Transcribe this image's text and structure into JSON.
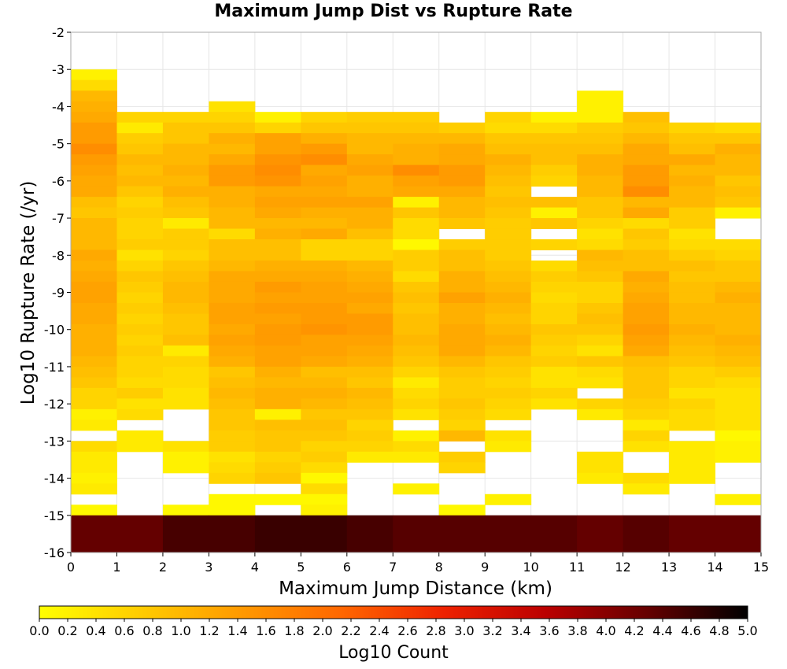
{
  "chart_data": {
    "type": "heatmap",
    "title": "Maximum Jump Dist vs Rupture Rate",
    "xlabel": "Maximum Jump Distance (km)",
    "ylabel": "Log10 Rupture Rate (/yr)",
    "xlim": [
      0,
      15
    ],
    "ylim": [
      -16,
      -2
    ],
    "x_ticks": [
      "0",
      "1",
      "2",
      "3",
      "4",
      "5",
      "6",
      "7",
      "8",
      "9",
      "10",
      "11",
      "12",
      "13",
      "14",
      "15"
    ],
    "y_ticks": [
      "-2",
      "-3",
      "-4",
      "-5",
      "-6",
      "-7",
      "-8",
      "-9",
      "-10",
      "-11",
      "-12",
      "-13",
      "-14",
      "-15",
      "-16"
    ],
    "x_bin_width": 1,
    "y_bin_width": 0.2857,
    "y_bin_start": -3.0,
    "colorbar": {
      "label": "Log10 Count",
      "min": 0.0,
      "max": 5.0,
      "ticks": [
        "0.0",
        "0.2",
        "0.4",
        "0.6",
        "0.8",
        "1.0",
        "1.2",
        "1.4",
        "1.6",
        "1.8",
        "2.0",
        "2.2",
        "2.4",
        "2.6",
        "2.8",
        "3.0",
        "3.2",
        "3.4",
        "3.6",
        "3.8",
        "4.0",
        "4.2",
        "4.4",
        "4.6",
        "4.8",
        "5.0"
      ],
      "colors": [
        "#ffff00",
        "#ffcc00",
        "#ff9900",
        "#ff6600",
        "#ee2200",
        "#bb0000",
        "#660000",
        "#000000"
      ]
    },
    "values": [
      [
        0.2,
        null,
        null,
        null,
        null,
        null,
        null,
        null,
        null,
        null,
        null,
        null,
        null,
        null,
        null
      ],
      [
        0.5,
        null,
        null,
        null,
        null,
        null,
        null,
        null,
        null,
        null,
        null,
        null,
        null,
        null,
        null
      ],
      [
        1.0,
        null,
        null,
        null,
        null,
        null,
        null,
        null,
        null,
        null,
        null,
        0.2,
        null,
        null,
        null
      ],
      [
        1.1,
        null,
        null,
        0.4,
        null,
        null,
        null,
        null,
        null,
        null,
        null,
        0.2,
        null,
        null,
        null
      ],
      [
        1.2,
        0.6,
        0.6,
        0.6,
        0.2,
        0.6,
        0.7,
        0.7,
        null,
        0.6,
        0.2,
        0.2,
        0.9,
        null,
        null
      ],
      [
        1.4,
        0.3,
        0.8,
        0.8,
        0.6,
        0.8,
        0.8,
        0.8,
        0.7,
        0.5,
        0.5,
        0.7,
        0.8,
        0.6,
        0.5
      ],
      [
        1.4,
        0.7,
        0.8,
        1.1,
        1.3,
        1.1,
        1.0,
        1.0,
        1.0,
        0.8,
        0.8,
        0.8,
        1.0,
        0.8,
        0.8
      ],
      [
        1.6,
        0.8,
        1.0,
        1.0,
        1.3,
        1.4,
        1.0,
        1.1,
        1.2,
        0.9,
        0.9,
        0.9,
        1.2,
        0.9,
        1.1
      ],
      [
        1.4,
        1.0,
        1.0,
        1.2,
        1.5,
        1.6,
        1.2,
        1.1,
        1.2,
        1.1,
        0.9,
        1.1,
        1.2,
        1.2,
        1.0
      ],
      [
        1.3,
        0.9,
        1.1,
        1.4,
        1.6,
        1.2,
        1.3,
        1.6,
        1.4,
        1.0,
        0.7,
        1.1,
        1.4,
        1.0,
        1.0
      ],
      [
        1.2,
        1.0,
        1.0,
        1.4,
        1.5,
        1.3,
        1.1,
        1.3,
        1.4,
        0.9,
        0.6,
        1.0,
        1.4,
        1.1,
        0.8
      ],
      [
        1.2,
        0.8,
        1.1,
        1.1,
        1.2,
        1.2,
        1.1,
        1.2,
        1.2,
        0.8,
        null,
        1.0,
        1.6,
        1.0,
        0.9
      ],
      [
        0.9,
        0.6,
        0.9,
        1.1,
        1.3,
        1.3,
        1.3,
        0.2,
        1.0,
        0.9,
        0.9,
        0.8,
        1.0,
        1.0,
        0.8
      ],
      [
        0.8,
        0.7,
        0.8,
        1.0,
        1.2,
        1.1,
        1.1,
        0.8,
        1.0,
        0.8,
        0.2,
        0.8,
        1.2,
        0.7,
        0.2
      ],
      [
        1.0,
        0.6,
        0.3,
        1.0,
        1.0,
        1.0,
        1.1,
        0.5,
        0.8,
        0.7,
        0.8,
        0.6,
        0.5,
        0.7,
        null
      ],
      [
        1.0,
        0.6,
        0.7,
        0.5,
        1.1,
        1.2,
        0.9,
        0.5,
        null,
        0.7,
        null,
        0.4,
        0.8,
        0.4,
        null
      ],
      [
        1.0,
        0.7,
        0.7,
        0.9,
        0.9,
        0.6,
        0.6,
        0.1,
        0.7,
        0.7,
        0.6,
        0.5,
        0.7,
        0.5,
        0.5
      ],
      [
        1.2,
        0.4,
        0.6,
        0.9,
        0.9,
        0.6,
        0.6,
        0.7,
        0.9,
        0.7,
        null,
        1.0,
        0.9,
        0.7,
        0.6
      ],
      [
        1.1,
        0.6,
        0.8,
        1.0,
        1.1,
        1.1,
        1.0,
        0.7,
        0.9,
        0.8,
        0.5,
        0.9,
        0.9,
        0.9,
        0.8
      ],
      [
        1.2,
        0.8,
        0.9,
        1.2,
        1.2,
        1.2,
        1.1,
        0.5,
        1.1,
        0.9,
        0.7,
        0.8,
        1.2,
        0.8,
        0.8
      ],
      [
        1.3,
        0.7,
        1.0,
        1.2,
        1.4,
        1.3,
        1.2,
        0.8,
        1.1,
        1.0,
        0.6,
        0.6,
        1.1,
        0.9,
        1.0
      ],
      [
        1.3,
        0.6,
        1.0,
        1.2,
        1.3,
        1.3,
        1.3,
        0.9,
        1.3,
        1.1,
        0.5,
        0.6,
        1.2,
        0.9,
        1.1
      ],
      [
        1.2,
        0.7,
        0.9,
        1.3,
        1.4,
        1.4,
        1.2,
        0.8,
        1.1,
        1.0,
        0.6,
        0.8,
        1.3,
        1.0,
        1.0
      ],
      [
        1.2,
        0.6,
        0.8,
        1.3,
        1.3,
        1.4,
        1.4,
        0.9,
        1.1,
        0.9,
        0.6,
        0.9,
        1.3,
        1.0,
        1.0
      ],
      [
        1.1,
        0.7,
        0.8,
        1.2,
        1.4,
        1.5,
        1.4,
        0.9,
        1.2,
        1.0,
        0.8,
        0.8,
        1.4,
        1.1,
        1.0
      ],
      [
        1.1,
        0.6,
        0.9,
        1.3,
        1.4,
        1.3,
        1.3,
        1.0,
        1.2,
        1.1,
        0.7,
        0.6,
        1.3,
        1.0,
        1.1
      ],
      [
        1.1,
        0.7,
        0.3,
        1.2,
        1.3,
        1.3,
        1.2,
        0.9,
        1.2,
        1.0,
        0.6,
        0.4,
        1.2,
        0.9,
        1.0
      ],
      [
        1.0,
        0.6,
        0.6,
        1.1,
        1.3,
        1.2,
        1.1,
        0.8,
        1.0,
        0.8,
        0.7,
        0.8,
        0.9,
        0.8,
        0.9
      ],
      [
        0.9,
        0.6,
        0.5,
        0.8,
        1.1,
        0.9,
        0.9,
        0.6,
        0.8,
        0.7,
        0.4,
        0.5,
        0.8,
        0.6,
        0.7
      ],
      [
        0.8,
        0.5,
        0.5,
        0.9,
        1.0,
        1.0,
        0.8,
        0.3,
        0.7,
        0.6,
        0.4,
        0.4,
        0.8,
        0.6,
        0.5
      ],
      [
        0.6,
        0.7,
        0.4,
        1.0,
        1.1,
        1.1,
        1.0,
        0.5,
        0.7,
        0.7,
        0.6,
        null,
        0.8,
        0.4,
        0.4
      ],
      [
        0.6,
        0.4,
        0.4,
        0.9,
        1.1,
        1.0,
        0.9,
        0.6,
        0.8,
        0.6,
        0.4,
        0.6,
        0.7,
        0.6,
        0.4
      ],
      [
        0.2,
        0.5,
        null,
        0.8,
        0.2,
        0.8,
        0.8,
        0.4,
        0.7,
        0.5,
        null,
        0.3,
        0.6,
        0.5,
        0.4
      ],
      [
        0.3,
        null,
        null,
        0.8,
        0.9,
        0.9,
        0.6,
        null,
        0.6,
        null,
        null,
        null,
        0.3,
        0.5,
        0.4
      ],
      [
        null,
        0.3,
        null,
        0.7,
        0.8,
        0.8,
        0.7,
        0.2,
        1.0,
        0.4,
        null,
        null,
        0.6,
        null,
        0.1
      ],
      [
        0.5,
        0.3,
        0.4,
        0.7,
        0.8,
        0.6,
        0.6,
        0.5,
        null,
        0.3,
        null,
        null,
        0.4,
        0.3,
        0.2
      ],
      [
        0.3,
        null,
        0.2,
        0.4,
        0.6,
        0.7,
        0.3,
        0.3,
        0.7,
        null,
        null,
        0.4,
        null,
        0.3,
        0.2
      ],
      [
        0.3,
        null,
        0.2,
        0.5,
        0.7,
        0.5,
        null,
        null,
        0.6,
        null,
        null,
        0.4,
        null,
        0.3,
        null
      ],
      [
        0.2,
        null,
        null,
        0.6,
        0.8,
        0.1,
        null,
        null,
        null,
        null,
        null,
        0.3,
        0.5,
        0.3,
        null
      ],
      [
        0.3,
        null,
        null,
        null,
        null,
        0.5,
        null,
        0.2,
        null,
        null,
        null,
        null,
        0.3,
        null,
        null
      ],
      [
        null,
        null,
        null,
        0.1,
        0.1,
        0.1,
        null,
        null,
        null,
        0.2,
        null,
        null,
        null,
        null,
        0.2
      ],
      [
        0.1,
        null,
        0.1,
        0.1,
        null,
        0.2,
        null,
        null,
        0.1,
        null,
        null,
        null,
        null,
        null,
        null
      ],
      [
        4.3,
        4.3,
        4.5,
        4.5,
        4.6,
        4.6,
        4.5,
        4.4,
        4.4,
        4.4,
        4.4,
        4.3,
        4.4,
        4.3,
        4.3
      ]
    ]
  }
}
